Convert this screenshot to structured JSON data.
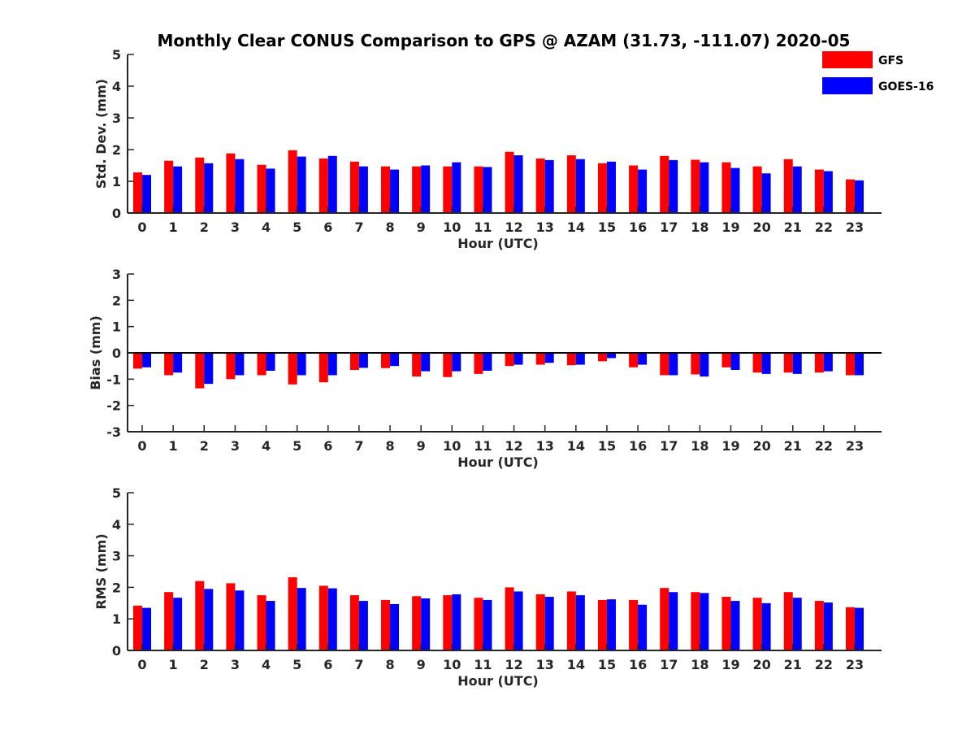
{
  "title": "Monthly Clear CONUS Comparison to GPS @ AZAM (31.73, -111.07) 2020-05",
  "legend": [
    {
      "name": "GFS",
      "color": "#ff0000"
    },
    {
      "name": "GOES-16",
      "color": "#0000ff"
    }
  ],
  "chart_data": [
    {
      "type": "bar",
      "xlabel": "Hour (UTC)",
      "ylabel": "Std. Dev. (mm)",
      "ylim": [
        0,
        5
      ],
      "yticks": [
        0,
        1,
        2,
        3,
        4,
        5
      ],
      "categories": [
        "0",
        "1",
        "2",
        "3",
        "4",
        "5",
        "6",
        "7",
        "8",
        "9",
        "10",
        "11",
        "12",
        "13",
        "14",
        "15",
        "16",
        "17",
        "18",
        "19",
        "20",
        "21",
        "22",
        "23"
      ],
      "series": [
        {
          "name": "GFS",
          "color": "#ff0000",
          "values": [
            1.28,
            1.65,
            1.75,
            1.88,
            1.52,
            1.98,
            1.72,
            1.62,
            1.47,
            1.47,
            1.47,
            1.47,
            1.93,
            1.72,
            1.82,
            1.57,
            1.5,
            1.8,
            1.68,
            1.6,
            1.47,
            1.7,
            1.37,
            1.06
          ]
        },
        {
          "name": "GOES-16",
          "color": "#0000ff",
          "values": [
            1.2,
            1.47,
            1.57,
            1.7,
            1.4,
            1.78,
            1.8,
            1.47,
            1.37,
            1.5,
            1.6,
            1.45,
            1.82,
            1.67,
            1.7,
            1.62,
            1.37,
            1.67,
            1.6,
            1.42,
            1.25,
            1.47,
            1.32,
            1.03
          ]
        }
      ]
    },
    {
      "type": "bar",
      "xlabel": "Hour (UTC)",
      "ylabel": "Bias (mm)",
      "ylim": [
        -3,
        3
      ],
      "yticks": [
        -3,
        -2,
        -1,
        0,
        1,
        2,
        3
      ],
      "zero_line": true,
      "categories": [
        "0",
        "1",
        "2",
        "3",
        "4",
        "5",
        "6",
        "7",
        "8",
        "9",
        "10",
        "11",
        "12",
        "13",
        "14",
        "15",
        "16",
        "17",
        "18",
        "19",
        "20",
        "21",
        "22",
        "23"
      ],
      "series": [
        {
          "name": "GFS",
          "color": "#ff0000",
          "values": [
            -0.6,
            -0.85,
            -1.35,
            -1.0,
            -0.85,
            -1.2,
            -1.12,
            -0.65,
            -0.58,
            -0.9,
            -0.92,
            -0.8,
            -0.5,
            -0.45,
            -0.47,
            -0.32,
            -0.55,
            -0.85,
            -0.82,
            -0.55,
            -0.75,
            -0.75,
            -0.75,
            -0.85
          ]
        },
        {
          "name": "GOES-16",
          "color": "#0000ff",
          "values": [
            -0.55,
            -0.75,
            -1.18,
            -0.85,
            -0.68,
            -0.85,
            -0.85,
            -0.57,
            -0.5,
            -0.7,
            -0.7,
            -0.68,
            -0.45,
            -0.38,
            -0.45,
            -0.2,
            -0.45,
            -0.85,
            -0.9,
            -0.65,
            -0.8,
            -0.8,
            -0.7,
            -0.85
          ]
        }
      ]
    },
    {
      "type": "bar",
      "xlabel": "Hour (UTC)",
      "ylabel": "RMS (mm)",
      "ylim": [
        0,
        5
      ],
      "yticks": [
        0,
        1,
        2,
        3,
        4,
        5
      ],
      "categories": [
        "0",
        "1",
        "2",
        "3",
        "4",
        "5",
        "6",
        "7",
        "8",
        "9",
        "10",
        "11",
        "12",
        "13",
        "14",
        "15",
        "16",
        "17",
        "18",
        "19",
        "20",
        "21",
        "22",
        "23"
      ],
      "series": [
        {
          "name": "GFS",
          "color": "#ff0000",
          "values": [
            1.42,
            1.85,
            2.2,
            2.13,
            1.75,
            2.32,
            2.05,
            1.75,
            1.6,
            1.72,
            1.75,
            1.67,
            2.0,
            1.78,
            1.87,
            1.6,
            1.6,
            1.98,
            1.85,
            1.7,
            1.67,
            1.85,
            1.57,
            1.37
          ]
        },
        {
          "name": "GOES-16",
          "color": "#0000ff",
          "values": [
            1.35,
            1.67,
            1.95,
            1.9,
            1.57,
            1.98,
            1.97,
            1.57,
            1.47,
            1.65,
            1.78,
            1.6,
            1.87,
            1.7,
            1.75,
            1.62,
            1.45,
            1.85,
            1.82,
            1.57,
            1.5,
            1.67,
            1.52,
            1.35
          ]
        }
      ]
    }
  ]
}
